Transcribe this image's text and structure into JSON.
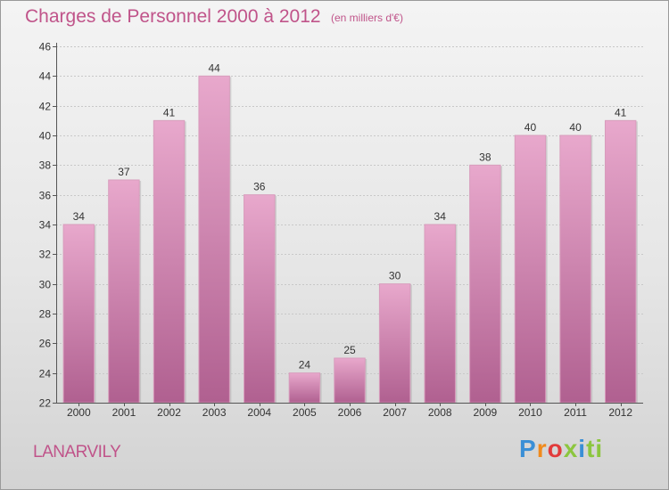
{
  "header": {
    "title": "Charges de Personnel 2000 à 2012",
    "subtitle": "(en milliers d'€)"
  },
  "footer": {
    "commune": "LANARVILY",
    "logo_letters": [
      "P",
      "r",
      "o",
      "x",
      "i",
      "t",
      "i"
    ]
  },
  "colors": {
    "accent": "#c0548a",
    "bar_top": "#e8a8cc",
    "bar_bottom": "#b06090"
  },
  "chart_data": {
    "type": "bar",
    "categories": [
      "2000",
      "2001",
      "2002",
      "2003",
      "2004",
      "2005",
      "2006",
      "2007",
      "2008",
      "2009",
      "2010",
      "2011",
      "2012"
    ],
    "values": [
      34,
      37,
      41,
      44,
      36,
      24,
      25,
      30,
      34,
      38,
      40,
      40,
      41
    ],
    "title": "Charges de Personnel 2000 à 2012",
    "subtitle": "(en milliers d'€)",
    "xlabel": "",
    "ylabel": "",
    "ylim": [
      22,
      46
    ],
    "yticks": [
      22,
      24,
      26,
      28,
      30,
      32,
      34,
      36,
      38,
      40,
      42,
      44,
      46
    ],
    "grid": true,
    "legend": "none",
    "data_labels": true
  }
}
